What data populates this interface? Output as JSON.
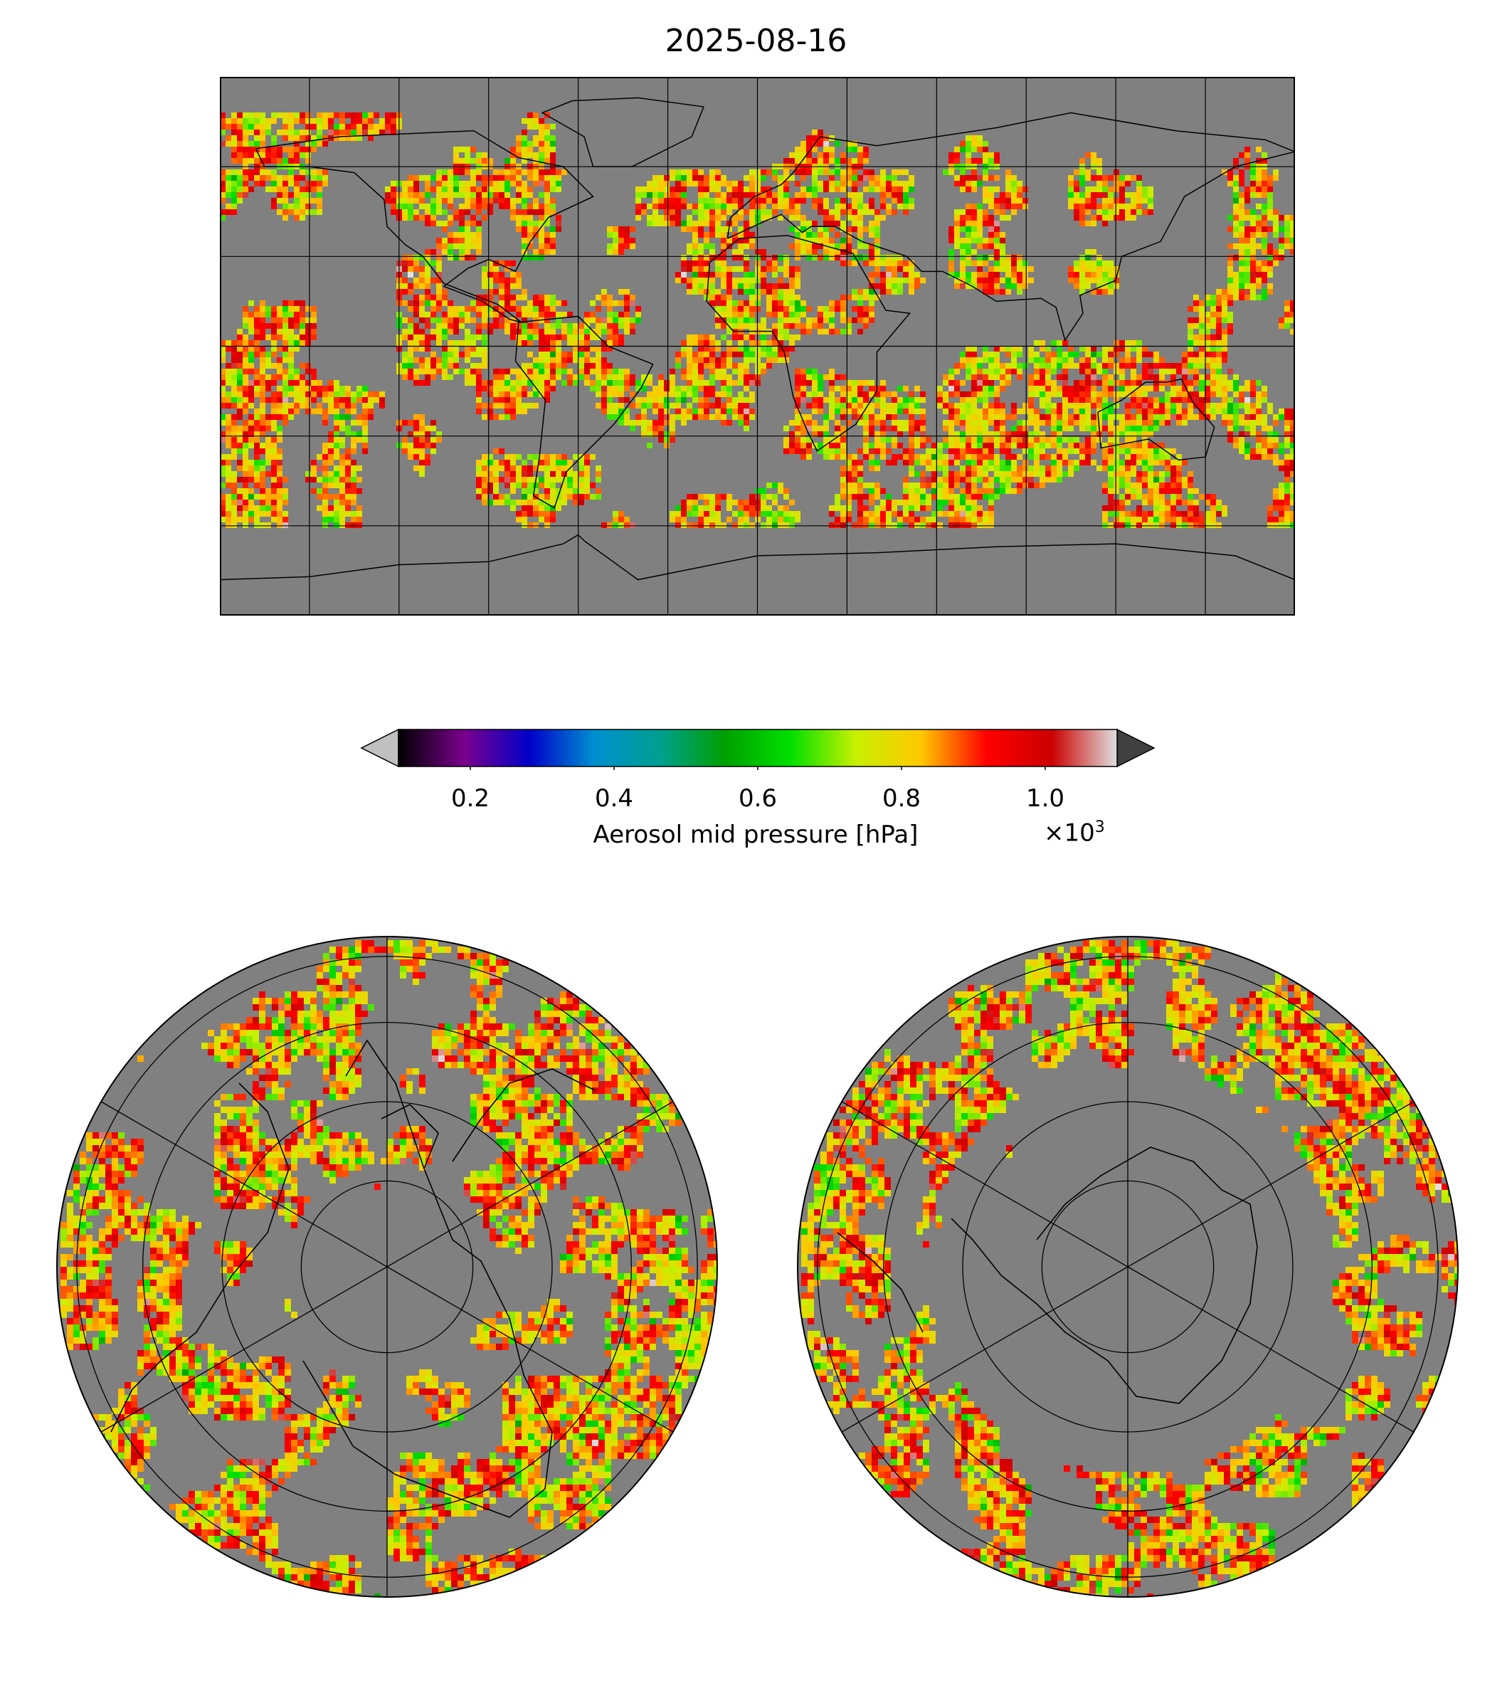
{
  "title": "2025-08-16",
  "colorbar": {
    "label": "Aerosol mid pressure [hPa]",
    "multiplier_base": "×10",
    "multiplier_exp": "3",
    "vmin": 0.1,
    "vmax": 1.1,
    "ticks": [
      0.2,
      0.4,
      0.6,
      0.8,
      1.0
    ],
    "tick_labels": [
      "0.2",
      "0.4",
      "0.6",
      "0.8",
      "1.0"
    ],
    "under_color": "#c0c0c0",
    "over_color": "#404040",
    "colormap_stops": [
      "#000000",
      "#7a008c",
      "#0000c8",
      "#0090d0",
      "#00a090",
      "#00a000",
      "#00e000",
      "#c8f000",
      "#ffc800",
      "#ff0000",
      "#cc0000",
      "#e0e0e0"
    ]
  },
  "maps": {
    "background_color": "#808080",
    "global": {
      "projection": "equirectangular"
    },
    "north_polar": {
      "projection": "north-polar-stereographic"
    },
    "south_polar": {
      "projection": "south-polar-stereographic"
    }
  }
}
